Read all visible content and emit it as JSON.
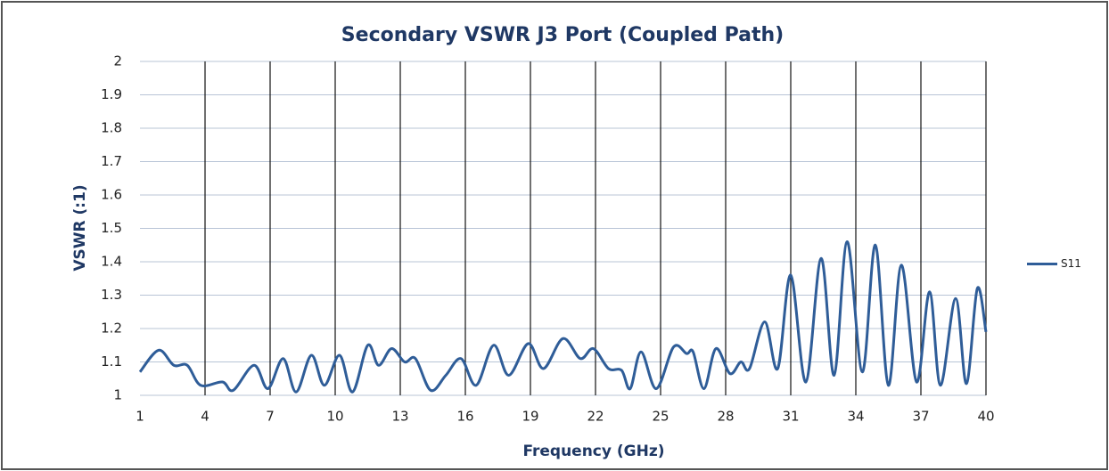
{
  "chart_data": {
    "type": "line",
    "title": "Secondary VSWR J3 Port (Coupled Path)",
    "x_label": "Frequency (GHz)",
    "y_label": "VSWR (:1)",
    "x": [
      1,
      1.86,
      2.56,
      3.18,
      3.8,
      4.8,
      5.3,
      6.26,
      6.9,
      7.6,
      8.2,
      8.9,
      9.5,
      10.2,
      10.8,
      11.5,
      12.0,
      12.6,
      13.2,
      13.7,
      14.4,
      15.1,
      15.8,
      16.5,
      17.3,
      18.0,
      18.9,
      19.6,
      20.5,
      21.3,
      21.9,
      22.6,
      23.2,
      23.6,
      24.1,
      24.8,
      25.6,
      26.2,
      26.5,
      27.0,
      27.55,
      28.2,
      28.7,
      29.1,
      29.8,
      30.4,
      31.0,
      31.7,
      32.4,
      33.0,
      33.6,
      34.3,
      34.9,
      35.5,
      36.1,
      36.8,
      37.4,
      37.9,
      38.6,
      39.1,
      39.6,
      40
    ],
    "series": [
      {
        "name": "S11",
        "color": "#2f5d98",
        "values": [
          1.07,
          1.135,
          1.09,
          1.09,
          1.03,
          1.04,
          1.015,
          1.09,
          1.02,
          1.11,
          1.01,
          1.12,
          1.03,
          1.12,
          1.01,
          1.15,
          1.09,
          1.14,
          1.1,
          1.11,
          1.015,
          1.06,
          1.11,
          1.03,
          1.15,
          1.06,
          1.155,
          1.08,
          1.17,
          1.11,
          1.14,
          1.08,
          1.075,
          1.02,
          1.13,
          1.02,
          1.145,
          1.125,
          1.13,
          1.02,
          1.14,
          1.065,
          1.1,
          1.08,
          1.22,
          1.08,
          1.36,
          1.04,
          1.41,
          1.06,
          1.46,
          1.07,
          1.45,
          1.03,
          1.39,
          1.04,
          1.31,
          1.03,
          1.29,
          1.035,
          1.32,
          1.19
        ]
      }
    ],
    "xlim": [
      1,
      40
    ],
    "xticks": [
      1,
      4,
      7,
      10,
      13,
      16,
      19,
      22,
      25,
      28,
      31,
      34,
      37,
      40
    ],
    "ylim": [
      1,
      2
    ],
    "yticks": [
      1,
      1.1,
      1.2,
      1.3,
      1.4,
      1.5,
      1.6,
      1.7,
      1.8,
      1.9,
      2
    ],
    "grid": true,
    "legend": "right"
  }
}
